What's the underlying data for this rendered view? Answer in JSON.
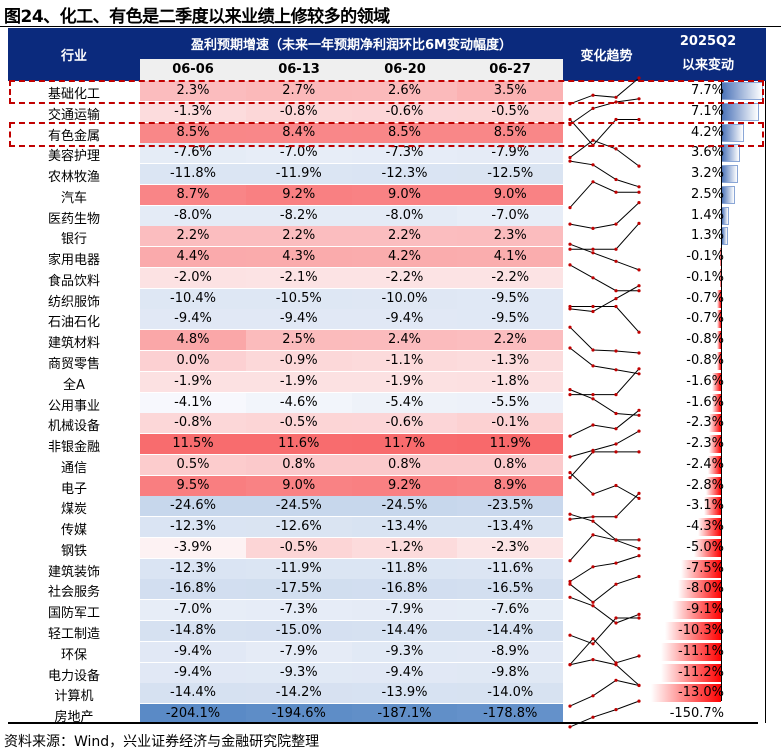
{
  "title": "图24、化工、有色是二季度以来业绩上修较多的领域",
  "header": {
    "industry": "行业",
    "group": "盈利预期增速（未来一年预期净利润环比6M变动幅度）",
    "dates": [
      "06-06",
      "06-13",
      "06-20",
      "06-27"
    ],
    "trend": "变化趋势",
    "change_line1": "2025Q2",
    "change_line2": "以来变动"
  },
  "footer": "资料来源：Wind，兴业证券经济与金融研究院整理",
  "colors": {
    "header_bg": "#0b2a7d",
    "heat_high": "#f8696b",
    "heat_low": "#5a8ac6",
    "bar_pos": "#4a72b8",
    "bar_neg": "#ff0000",
    "highlight": "#c00000"
  },
  "highlighted_rows": [
    "基础化工",
    "交通运输",
    "有色金属"
  ],
  "chart_data": {
    "type": "table",
    "columns": [
      "行业",
      "06-06",
      "06-13",
      "06-20",
      "06-27",
      "变化趋势",
      "2025Q2以来变动"
    ],
    "rows": [
      {
        "industry": "基础化工",
        "values": [
          "2.3%",
          "2.7%",
          "2.6%",
          "3.5%"
        ],
        "change": "7.7%"
      },
      {
        "industry": "交通运输",
        "values": [
          "-1.3%",
          "-0.8%",
          "-0.6%",
          "-0.5%"
        ],
        "change": "7.1%"
      },
      {
        "industry": "有色金属",
        "values": [
          "8.5%",
          "8.4%",
          "8.5%",
          "8.5%"
        ],
        "change": "4.2%"
      },
      {
        "industry": "美容护理",
        "values": [
          "-7.6%",
          "-7.0%",
          "-7.3%",
          "-7.9%"
        ],
        "change": "3.6%"
      },
      {
        "industry": "农林牧渔",
        "values": [
          "-11.8%",
          "-11.9%",
          "-12.3%",
          "-12.5%"
        ],
        "change": "3.2%"
      },
      {
        "industry": "汽车",
        "values": [
          "8.7%",
          "9.2%",
          "9.0%",
          "9.0%"
        ],
        "change": "2.5%"
      },
      {
        "industry": "医药生物",
        "values": [
          "-8.0%",
          "-8.2%",
          "-8.0%",
          "-7.0%"
        ],
        "change": "1.4%"
      },
      {
        "industry": "银行",
        "values": [
          "2.2%",
          "2.2%",
          "2.2%",
          "2.3%"
        ],
        "change": "1.3%"
      },
      {
        "industry": "家用电器",
        "values": [
          "4.4%",
          "4.3%",
          "4.2%",
          "4.1%"
        ],
        "change": "-0.1%"
      },
      {
        "industry": "食品饮料",
        "values": [
          "-2.0%",
          "-2.1%",
          "-2.2%",
          "-2.2%"
        ],
        "change": "-0.1%"
      },
      {
        "industry": "纺织服饰",
        "values": [
          "-10.4%",
          "-10.5%",
          "-10.0%",
          "-9.5%"
        ],
        "change": "-0.7%"
      },
      {
        "industry": "石油石化",
        "values": [
          "-9.4%",
          "-9.4%",
          "-9.4%",
          "-9.5%"
        ],
        "change": "-0.7%"
      },
      {
        "industry": "建筑材料",
        "values": [
          "4.8%",
          "2.5%",
          "2.4%",
          "2.2%"
        ],
        "change": "-0.8%"
      },
      {
        "industry": "商贸零售",
        "values": [
          "0.0%",
          "-0.9%",
          "-1.1%",
          "-1.3%"
        ],
        "change": "-0.8%"
      },
      {
        "industry": "全A",
        "values": [
          "-1.9%",
          "-1.9%",
          "-1.9%",
          "-1.8%"
        ],
        "change": "-1.6%"
      },
      {
        "industry": "公用事业",
        "values": [
          "-4.1%",
          "-4.6%",
          "-5.4%",
          "-5.5%"
        ],
        "change": "-1.6%"
      },
      {
        "industry": "机械设备",
        "values": [
          "-0.8%",
          "-0.5%",
          "-0.6%",
          "-0.1%"
        ],
        "change": "-2.3%"
      },
      {
        "industry": "非银金融",
        "values": [
          "11.5%",
          "11.6%",
          "11.7%",
          "11.9%"
        ],
        "change": "-2.3%"
      },
      {
        "industry": "通信",
        "values": [
          "0.5%",
          "0.8%",
          "0.8%",
          "0.8%"
        ],
        "change": "-2.4%"
      },
      {
        "industry": "电子",
        "values": [
          "9.5%",
          "9.0%",
          "9.2%",
          "8.9%"
        ],
        "change": "-2.8%"
      },
      {
        "industry": "煤炭",
        "values": [
          "-24.6%",
          "-24.5%",
          "-24.5%",
          "-23.5%"
        ],
        "change": "-3.1%"
      },
      {
        "industry": "传媒",
        "values": [
          "-12.3%",
          "-12.6%",
          "-13.4%",
          "-13.4%"
        ],
        "change": "-4.3%"
      },
      {
        "industry": "钢铁",
        "values": [
          "-3.9%",
          "-0.5%",
          "-1.2%",
          "-2.3%"
        ],
        "change": "-5.0%"
      },
      {
        "industry": "建筑装饰",
        "values": [
          "-12.3%",
          "-11.9%",
          "-11.8%",
          "-11.6%"
        ],
        "change": "-7.5%"
      },
      {
        "industry": "社会服务",
        "values": [
          "-16.8%",
          "-17.5%",
          "-16.8%",
          "-16.5%"
        ],
        "change": "-8.0%"
      },
      {
        "industry": "国防军工",
        "values": [
          "-7.0%",
          "-7.3%",
          "-7.9%",
          "-7.6%"
        ],
        "change": "-9.1%"
      },
      {
        "industry": "轻工制造",
        "values": [
          "-14.8%",
          "-15.0%",
          "-14.4%",
          "-14.4%"
        ],
        "change": "-10.3%"
      },
      {
        "industry": "环保",
        "values": [
          "-9.4%",
          "-7.9%",
          "-9.3%",
          "-8.9%"
        ],
        "change": "-11.1%"
      },
      {
        "industry": "电力设备",
        "values": [
          "-9.4%",
          "-9.3%",
          "-9.4%",
          "-9.8%"
        ],
        "change": "-11.2%"
      },
      {
        "industry": "计算机",
        "values": [
          "-14.4%",
          "-14.2%",
          "-13.9%",
          "-14.0%"
        ],
        "change": "-13.0%"
      },
      {
        "industry": "房地产",
        "values": [
          "-204.1%",
          "-194.6%",
          "-187.1%",
          "-178.8%"
        ],
        "change": "-150.7%"
      }
    ]
  }
}
